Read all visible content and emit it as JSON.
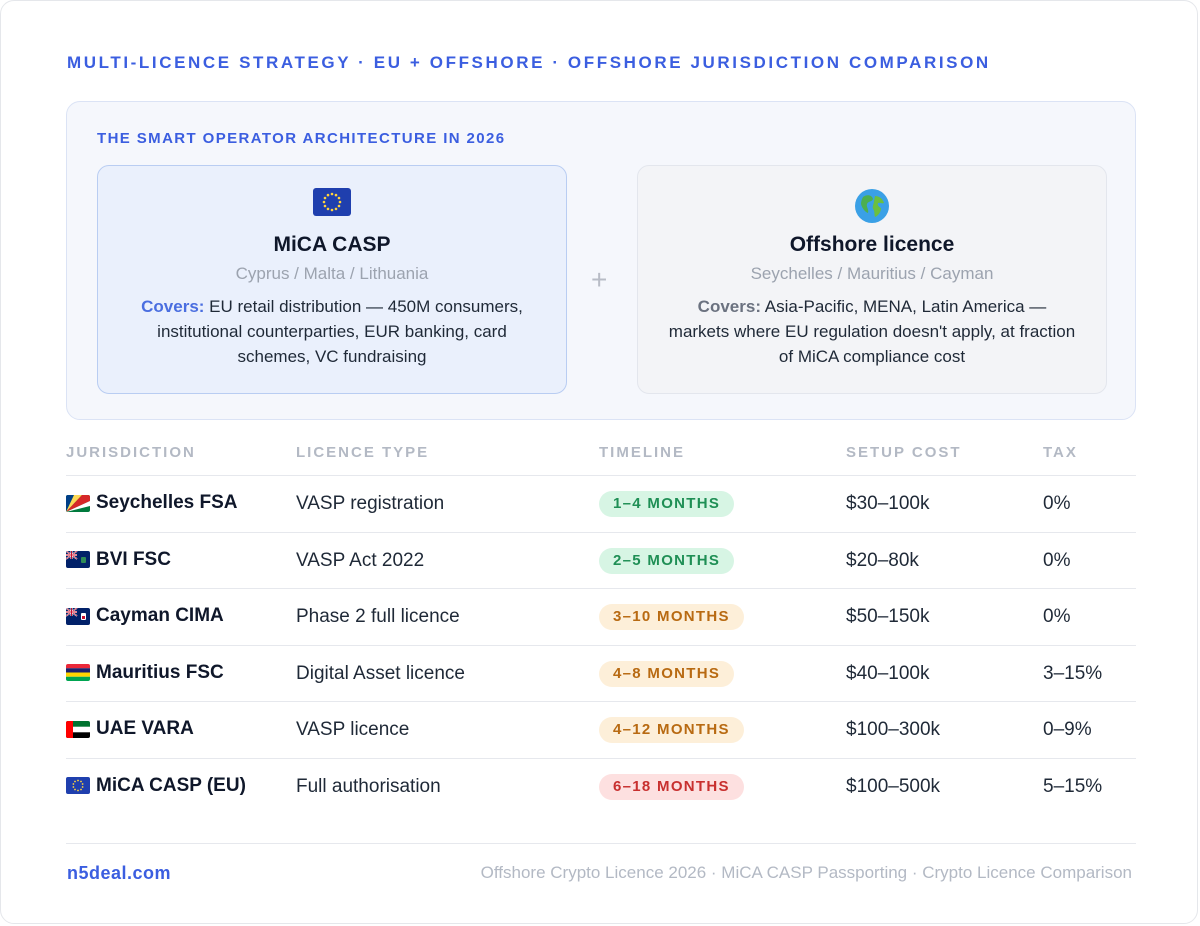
{
  "header": {
    "kicker": "MULTI-LICENCE STRATEGY · EU + OFFSHORE · OFFSHORE JURISDICTION COMPARISON"
  },
  "architecture": {
    "title": "THE SMART OPERATOR ARCHITECTURE IN 2026",
    "plus": "+",
    "eu_panel": {
      "icon": "eu-flag-icon",
      "title": "MiCA CASP",
      "subtitle": "Cyprus / Malta / Lithuania",
      "covers_label": "Covers:",
      "covers_text": " EU retail distribution — 450M consumers, institutional counterparties, EUR banking, card schemes, VC fundraising"
    },
    "offshore_panel": {
      "icon": "globe-icon",
      "title": "Offshore licence",
      "subtitle": "Seychelles / Mauritius / Cayman",
      "covers_label": "Covers:",
      "covers_text": " Asia-Pacific, MENA, Latin America — markets where EU regulation doesn't apply, at fraction of MiCA compliance cost"
    }
  },
  "table": {
    "headers": [
      "JURISDICTION",
      "LICENCE TYPE",
      "TIMELINE",
      "SETUP COST",
      "TAX"
    ],
    "rows": [
      {
        "flag": "seychelles-flag-icon",
        "jurisdiction": "Seychelles FSA",
        "licence": "VASP registration",
        "timeline": "1–4 MONTHS",
        "status": "green",
        "cost": "$30–100k",
        "tax": "0%"
      },
      {
        "flag": "bvi-flag-icon",
        "jurisdiction": "BVI FSC",
        "licence": "VASP Act 2022",
        "timeline": "2–5 MONTHS",
        "status": "green",
        "cost": "$20–80k",
        "tax": "0%"
      },
      {
        "flag": "cayman-flag-icon",
        "jurisdiction": "Cayman CIMA",
        "licence": "Phase 2 full licence",
        "timeline": "3–10 MONTHS",
        "status": "amber",
        "cost": "$50–150k",
        "tax": "0%"
      },
      {
        "flag": "mauritius-flag-icon",
        "jurisdiction": "Mauritius FSC",
        "licence": "Digital Asset licence",
        "timeline": "4–8 MONTHS",
        "status": "amber",
        "cost": "$40–100k",
        "tax": "3–15%"
      },
      {
        "flag": "uae-flag-icon",
        "jurisdiction": "UAE VARA",
        "licence": "VASP licence",
        "timeline": "4–12 MONTHS",
        "status": "amber",
        "cost": "$100–300k",
        "tax": "0–9%"
      },
      {
        "flag": "eu-flag-icon",
        "jurisdiction": "MiCA CASP (EU)",
        "licence": "Full authorisation",
        "timeline": "6–18 MONTHS",
        "status": "red",
        "cost": "$100–500k",
        "tax": "5–15%"
      }
    ]
  },
  "footer": {
    "site": "n5deal.com",
    "tags": "Offshore Crypto Licence 2026 · MiCA CASP Passporting · Crypto Licence Comparison"
  },
  "colors": {
    "accent": "#3b5ee0",
    "green": "#1f8f55",
    "amber": "#b86a12",
    "red": "#c8302f"
  }
}
